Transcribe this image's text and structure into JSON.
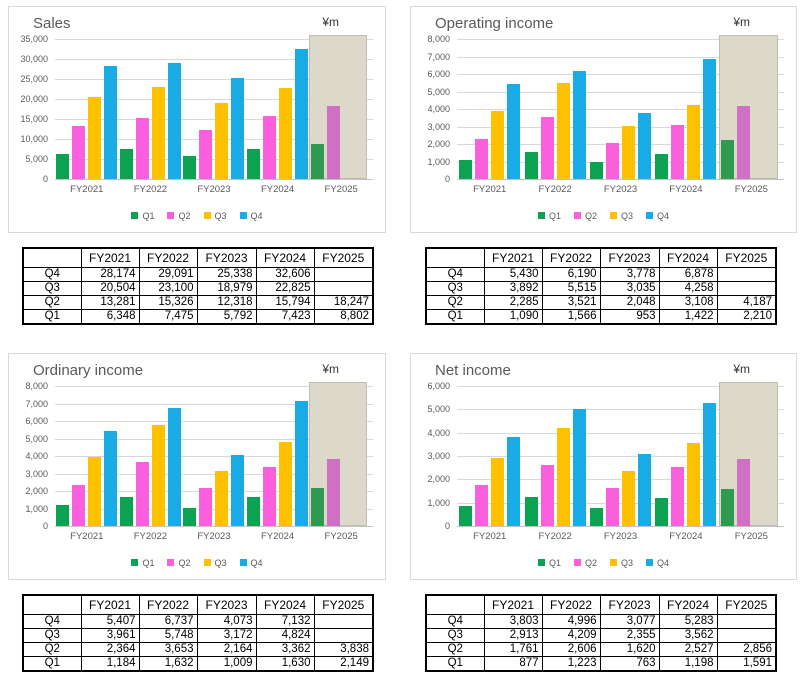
{
  "colors": {
    "grid": "#d9d9d9",
    "axis_line": "#c3c3c3",
    "axis_text": "#595959",
    "title_text": "#595959",
    "panel_border": "#d9d9d9",
    "highlight_fill": "#dcd9ca",
    "highlight_border": "#bfbcb0",
    "table_border": "#000000"
  },
  "chart_data": [
    {
      "type": "bar",
      "title": "Sales",
      "unit_label": "¥m",
      "categories": [
        "FY2021",
        "FY2022",
        "FY2023",
        "FY2024",
        "FY2025"
      ],
      "series": [
        {
          "name": "Q1",
          "color": "#0ba251",
          "highlight_color": "#2f9b51",
          "values": [
            6348,
            7475,
            5792,
            7423,
            8802
          ]
        },
        {
          "name": "Q2",
          "color": "#fa60dd",
          "highlight_color": "#d070c5",
          "values": [
            13281,
            15326,
            12318,
            15794,
            18247
          ]
        },
        {
          "name": "Q3",
          "color": "#ffc000",
          "highlight_color": "#ffc000",
          "values": [
            20504,
            23100,
            18979,
            22825,
            null
          ]
        },
        {
          "name": "Q4",
          "color": "#18abe5",
          "highlight_color": "#18abe5",
          "values": [
            28174,
            29091,
            25338,
            32606,
            null
          ]
        }
      ],
      "ylim": [
        0,
        35000
      ],
      "ytick_step": 5000,
      "grid": true,
      "legend_position": "bottom",
      "highlight_category": "FY2025",
      "table": {
        "corner_label": "",
        "columns": [
          "FY2021",
          "FY2022",
          "FY2023",
          "FY2024",
          "FY2025"
        ],
        "rows": [
          {
            "label": "Q4",
            "values": [
              "28,174",
              "29,091",
              "25,338",
              "32,606",
              ""
            ]
          },
          {
            "label": "Q3",
            "values": [
              "20,504",
              "23,100",
              "18,979",
              "22,825",
              ""
            ]
          },
          {
            "label": "Q2",
            "values": [
              "13,281",
              "15,326",
              "12,318",
              "15,794",
              "18,247"
            ]
          },
          {
            "label": "Q1",
            "values": [
              "6,348",
              "7,475",
              "5,792",
              "7,423",
              "8,802"
            ]
          }
        ]
      }
    },
    {
      "type": "bar",
      "title": "Operating income",
      "unit_label": "¥m",
      "categories": [
        "FY2021",
        "FY2022",
        "FY2023",
        "FY2024",
        "FY2025"
      ],
      "series": [
        {
          "name": "Q1",
          "color": "#0ba251",
          "highlight_color": "#2f9b51",
          "values": [
            1090,
            1566,
            953,
            1422,
            2210
          ]
        },
        {
          "name": "Q2",
          "color": "#fa60dd",
          "highlight_color": "#d070c5",
          "values": [
            2285,
            3521,
            2048,
            3108,
            4187
          ]
        },
        {
          "name": "Q3",
          "color": "#ffc000",
          "highlight_color": "#ffc000",
          "values": [
            3892,
            5515,
            3035,
            4258,
            null
          ]
        },
        {
          "name": "Q4",
          "color": "#18abe5",
          "highlight_color": "#18abe5",
          "values": [
            5430,
            6190,
            3778,
            6878,
            null
          ]
        }
      ],
      "ylim": [
        0,
        8000
      ],
      "ytick_step": 1000,
      "grid": true,
      "legend_position": "bottom",
      "highlight_category": "FY2025",
      "table": {
        "corner_label": "",
        "columns": [
          "FY2021",
          "FY2022",
          "FY2023",
          "FY2024",
          "FY2025"
        ],
        "rows": [
          {
            "label": "Q4",
            "values": [
              "5,430",
              "6,190",
              "3,778",
              "6,878",
              ""
            ]
          },
          {
            "label": "Q3",
            "values": [
              "3,892",
              "5,515",
              "3,035",
              "4,258",
              ""
            ]
          },
          {
            "label": "Q2",
            "values": [
              "2,285",
              "3,521",
              "2,048",
              "3,108",
              "4,187"
            ]
          },
          {
            "label": "Q1",
            "values": [
              "1,090",
              "1,566",
              "953",
              "1,422",
              "2,210"
            ]
          }
        ]
      }
    },
    {
      "type": "bar",
      "title": "Ordinary income",
      "unit_label": "¥m",
      "categories": [
        "FY2021",
        "FY2022",
        "FY2023",
        "FY2024",
        "FY2025"
      ],
      "series": [
        {
          "name": "Q1",
          "color": "#0ba251",
          "highlight_color": "#2f9b51",
          "values": [
            1184,
            1632,
            1009,
            1630,
            2149
          ]
        },
        {
          "name": "Q2",
          "color": "#fa60dd",
          "highlight_color": "#d070c5",
          "values": [
            2364,
            3653,
            2164,
            3362,
            3838
          ]
        },
        {
          "name": "Q3",
          "color": "#ffc000",
          "highlight_color": "#ffc000",
          "values": [
            3961,
            5748,
            3172,
            4824,
            null
          ]
        },
        {
          "name": "Q4",
          "color": "#18abe5",
          "highlight_color": "#18abe5",
          "values": [
            5407,
            6737,
            4073,
            7132,
            null
          ]
        }
      ],
      "ylim": [
        0,
        8000
      ],
      "ytick_step": 1000,
      "grid": true,
      "legend_position": "bottom",
      "highlight_category": "FY2025",
      "table": {
        "corner_label": "",
        "columns": [
          "FY2021",
          "FY2022",
          "FY2023",
          "FY2024",
          "FY2025"
        ],
        "rows": [
          {
            "label": "Q4",
            "values": [
              "5,407",
              "6,737",
              "4,073",
              "7,132",
              ""
            ]
          },
          {
            "label": "Q3",
            "values": [
              "3,961",
              "5,748",
              "3,172",
              "4,824",
              ""
            ]
          },
          {
            "label": "Q2",
            "values": [
              "2,364",
              "3,653",
              "2,164",
              "3,362",
              "3,838"
            ]
          },
          {
            "label": "Q1",
            "values": [
              "1,184",
              "1,632",
              "1,009",
              "1,630",
              "2,149"
            ]
          }
        ]
      }
    },
    {
      "type": "bar",
      "title": "Net income",
      "unit_label": "¥m",
      "categories": [
        "FY2021",
        "FY2022",
        "FY2023",
        "FY2024",
        "FY2025"
      ],
      "series": [
        {
          "name": "Q1",
          "color": "#0ba251",
          "highlight_color": "#2f9b51",
          "values": [
            877,
            1223,
            763,
            1198,
            1591
          ]
        },
        {
          "name": "Q2",
          "color": "#fa60dd",
          "highlight_color": "#d070c5",
          "values": [
            1761,
            2606,
            1620,
            2527,
            2856
          ]
        },
        {
          "name": "Q3",
          "color": "#ffc000",
          "highlight_color": "#ffc000",
          "values": [
            2913,
            4209,
            2355,
            3562,
            null
          ]
        },
        {
          "name": "Q4",
          "color": "#18abe5",
          "highlight_color": "#18abe5",
          "values": [
            3803,
            4996,
            3077,
            5283,
            null
          ]
        }
      ],
      "ylim": [
        0,
        6000
      ],
      "ytick_step": 1000,
      "grid": true,
      "legend_position": "bottom",
      "highlight_category": "FY2025",
      "table": {
        "corner_label": "",
        "columns": [
          "FY2021",
          "FY2022",
          "FY2023",
          "FY2024",
          "FY2025"
        ],
        "rows": [
          {
            "label": "Q4",
            "values": [
              "3,803",
              "4,996",
              "3,077",
              "5,283",
              ""
            ]
          },
          {
            "label": "Q3",
            "values": [
              "2,913",
              "4,209",
              "2,355",
              "3,562",
              ""
            ]
          },
          {
            "label": "Q2",
            "values": [
              "1,761",
              "2,606",
              "1,620",
              "2,527",
              "2,856"
            ]
          },
          {
            "label": "Q1",
            "values": [
              "877",
              "1,223",
              "763",
              "1,198",
              "1,591"
            ]
          }
        ]
      }
    }
  ]
}
